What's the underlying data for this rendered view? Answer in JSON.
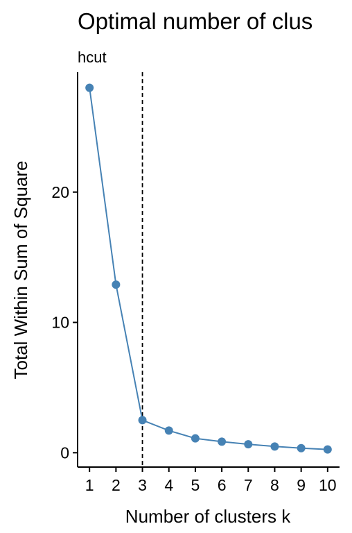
{
  "chart_data": {
    "type": "line",
    "title": "Optimal number of clus",
    "subtitle": "hcut",
    "xlabel": "Number of clusters k",
    "ylabel": "Total Within Sum of Square",
    "x": [
      1,
      2,
      3,
      4,
      5,
      6,
      7,
      8,
      9,
      10
    ],
    "series": [
      {
        "values": [
          28.0,
          12.9,
          2.5,
          1.7,
          1.1,
          0.85,
          0.65,
          0.48,
          0.35,
          0.25
        ]
      }
    ],
    "y_ticks": [
      0,
      10,
      20
    ],
    "x_ticks": [
      1,
      2,
      3,
      4,
      5,
      6,
      7,
      8,
      9,
      10
    ],
    "xlim": [
      0.55,
      10.45
    ],
    "ylim": [
      -1.1,
      29.2
    ],
    "reference_line_x": 3,
    "grid": false,
    "colors": {
      "series": "#4682B4",
      "axis": "#000000",
      "reference_line": "#000000"
    }
  }
}
